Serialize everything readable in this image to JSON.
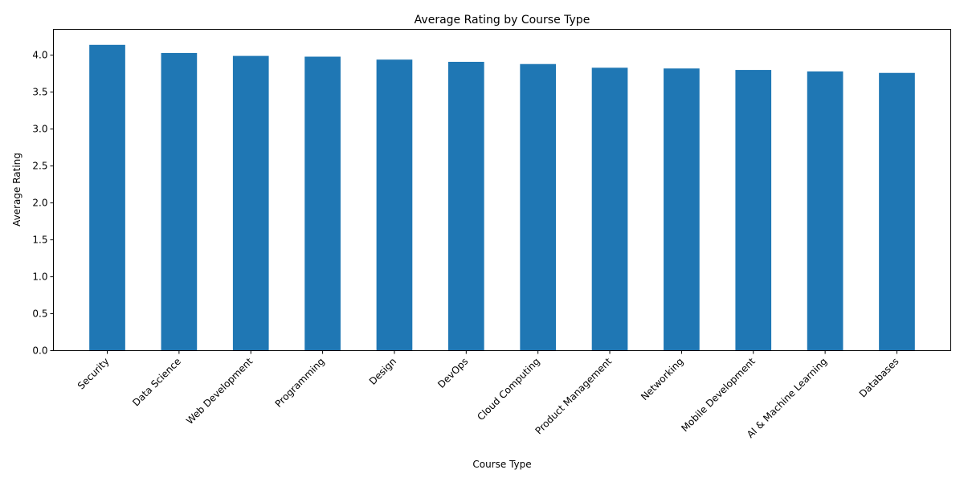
{
  "chart_data": {
    "type": "bar",
    "title": "Average Rating by Course Type",
    "xlabel": "Course Type",
    "ylabel": "Average Rating",
    "categories": [
      "Security",
      "Data Science",
      "Web Development",
      "Programming",
      "Design",
      "DevOps",
      "Cloud Computing",
      "Product Management",
      "Networking",
      "Mobile Development",
      "AI & Machine Learning",
      "Databases"
    ],
    "values": [
      4.14,
      4.03,
      3.99,
      3.98,
      3.94,
      3.91,
      3.88,
      3.83,
      3.82,
      3.8,
      3.78,
      3.76
    ],
    "ylim": [
      0,
      4.35
    ],
    "yticks": [
      "0.0",
      "0.5",
      "1.0",
      "1.5",
      "2.0",
      "2.5",
      "3.0",
      "3.5",
      "4.0"
    ],
    "bar_color": "#1f77b4",
    "grid": false,
    "legend": "none"
  }
}
